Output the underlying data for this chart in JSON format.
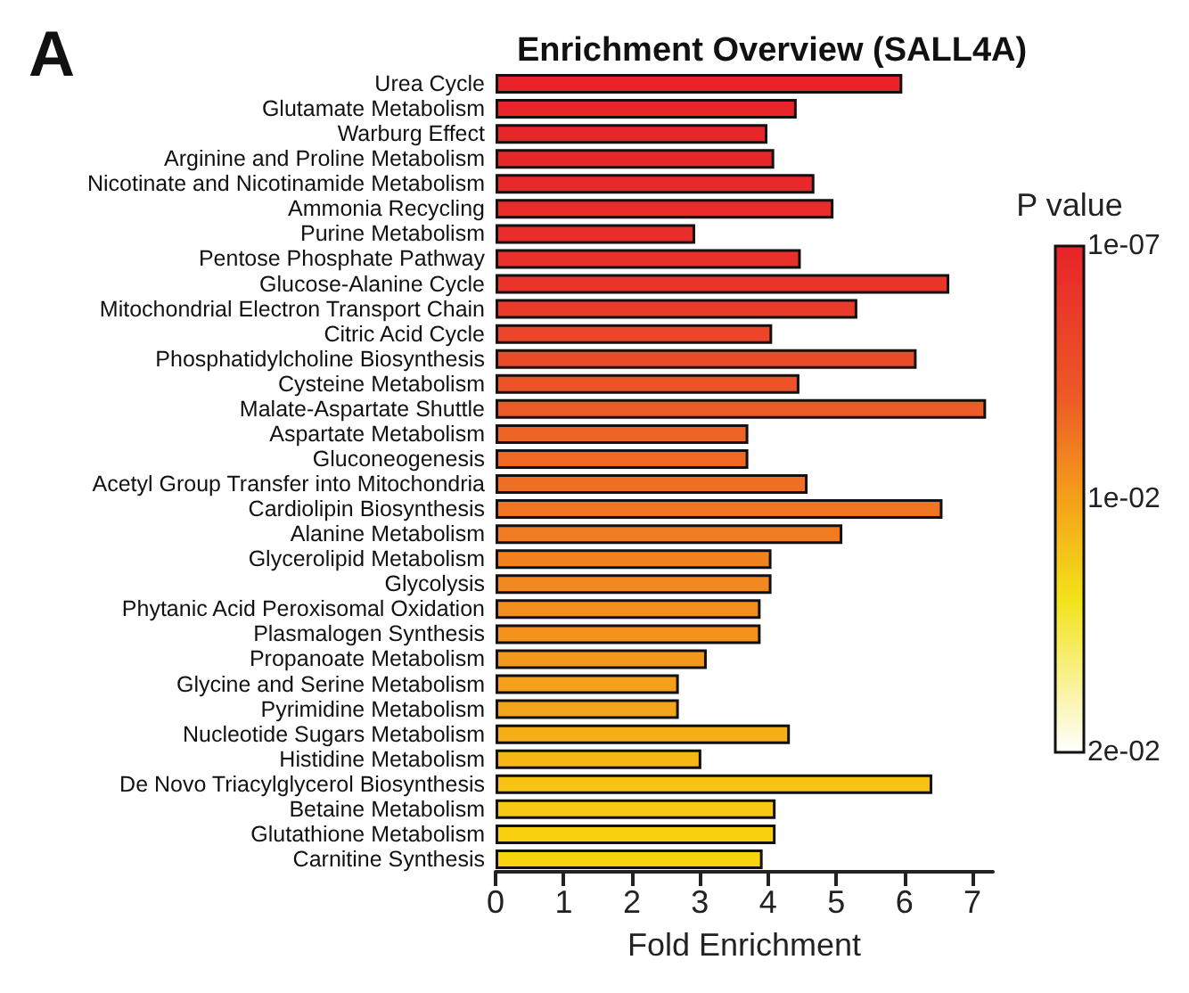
{
  "chart_data": {
    "type": "bar",
    "orientation": "horizontal",
    "title": "Enrichment Overview (SALL4A)",
    "xlabel": "Fold Enrichment",
    "clabel": "P value",
    "annotations": [
      "A"
    ],
    "categories": [
      "Urea Cycle",
      "Glutamate Metabolism",
      "Warburg Effect",
      "Arginine and Proline Metabolism",
      "Nicotinate and Nicotinamide Metabolism",
      "Ammonia Recycling",
      "Purine Metabolism",
      "Pentose Phosphate Pathway",
      "Glucose-Alanine Cycle",
      "Mitochondrial Electron Transport Chain",
      "Citric Acid Cycle",
      "Phosphatidylcholine Biosynthesis",
      "Cysteine Metabolism",
      "Malate-Aspartate Shuttle",
      "Aspartate Metabolism",
      "Gluconeogenesis",
      "Acetyl Group Transfer into Mitochondria",
      "Cardiolipin Biosynthesis",
      "Alanine Metabolism",
      "Glycerolipid Metabolism",
      "Glycolysis",
      "Phytanic Acid Peroxisomal Oxidation",
      "Plasmalogen Synthesis",
      "Propanoate Metabolism",
      "Glycine and Serine Metabolism",
      "Pyrimidine Metabolism",
      "Nucleotide Sugars Metabolism",
      "Histidine Metabolism",
      "De Novo Triacylglycerol Biosynthesis",
      "Betaine Metabolism",
      "Glutathione Metabolism",
      "Carnitine Synthesis"
    ],
    "values": [
      5.97,
      4.42,
      3.99,
      4.09,
      4.68,
      4.96,
      2.93,
      4.48,
      6.66,
      5.31,
      4.06,
      6.18,
      4.46,
      7.2,
      3.71,
      3.71,
      4.58,
      6.56,
      5.09,
      4.05,
      4.05,
      3.89,
      3.89,
      3.1,
      2.69,
      2.69,
      4.32,
      3.02,
      6.41,
      4.11,
      4.11,
      3.92
    ],
    "colors": [
      "#e82329",
      "#e8252a",
      "#e8262a",
      "#e8272a",
      "#e8292a",
      "#e92b2a",
      "#e92d2a",
      "#e9302a",
      "#ea3429",
      "#ea3a29",
      "#eb4428",
      "#eb4c28",
      "#ec5427",
      "#ed5b26",
      "#ee6425",
      "#ef6924",
      "#f06f23",
      "#f07522",
      "#f17b21",
      "#f28220",
      "#f3881f",
      "#f38d1e",
      "#f4921d",
      "#f4981c",
      "#f59f1b",
      "#f5a51a",
      "#f6ae18",
      "#f6b716",
      "#f7c213",
      "#f7c912",
      "#f8d00f",
      "#f8d40e"
    ],
    "xlim": [
      0,
      7.3
    ],
    "xticks": [
      0,
      1,
      2,
      3,
      4,
      5,
      6,
      7
    ],
    "clim": [
      1e-07,
      0.02
    ],
    "cticks": [
      {
        "value": 1e-07,
        "label": "1e-07"
      },
      {
        "value": 0.01,
        "label": "1e-02"
      },
      {
        "value": 0.02,
        "label": "2e-02"
      }
    ],
    "grid": false
  }
}
